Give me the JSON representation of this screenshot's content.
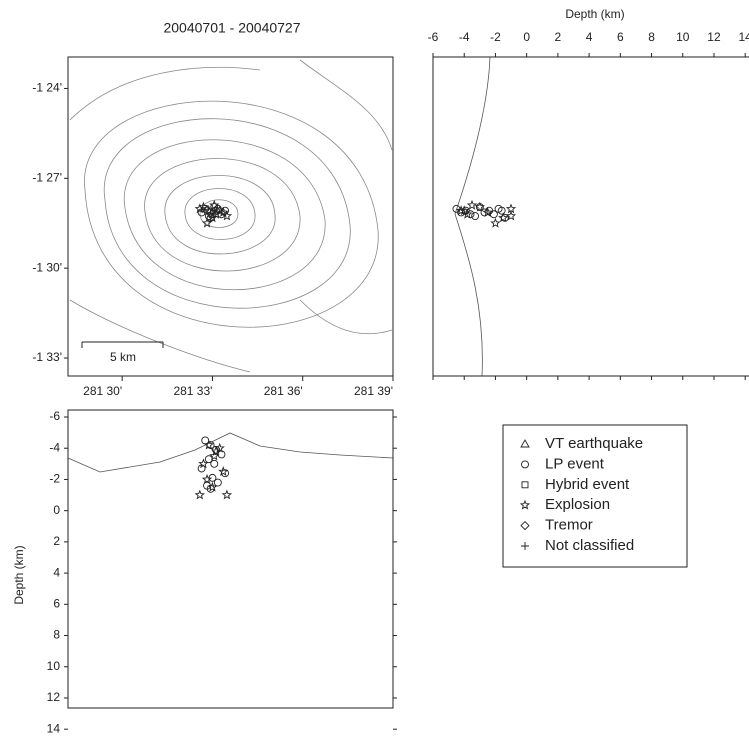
{
  "chart_data": {
    "type": "scatter",
    "title": "20040701   -   20040727",
    "lonlim": [
      281.47,
      281.65
    ],
    "latlim": [
      -1.56,
      -1.3825
    ],
    "depthlim": [
      -6,
      14.5
    ],
    "lon_ticks": [
      {
        "value": 281.5,
        "label": "281 30'"
      },
      {
        "value": 281.55,
        "label": "281 33'"
      },
      {
        "value": 281.6,
        "label": "281 36'"
      },
      {
        "value": 281.65,
        "label": "281 39'"
      }
    ],
    "lat_ticks": [
      {
        "value": -1.4,
        "label": "-1 24'"
      },
      {
        "value": -1.45,
        "label": "-1 27'"
      },
      {
        "value": -1.5,
        "label": "-1 30'"
      },
      {
        "value": -1.55,
        "label": "-1 33'"
      }
    ],
    "depth_ticks": [
      -6,
      -4,
      -2,
      0,
      2,
      4,
      6,
      8,
      10,
      12,
      14
    ],
    "right_xlabel": "Depth (km)",
    "bottom_ylabel": "Depth (km)",
    "scale_bar_label": "5 km",
    "series": [
      {
        "name": "VT earthquake",
        "symbol": "triangle",
        "lon": [],
        "lat": [],
        "depth": []
      },
      {
        "name": "LP event",
        "symbol": "circle",
        "lon": [
          281.546,
          281.549,
          281.552,
          281.555,
          281.548,
          281.551,
          281.544,
          281.557,
          281.55,
          281.553,
          281.547,
          281.549
        ],
        "lat": [
          -1.467,
          -1.469,
          -1.468,
          -1.47,
          -1.471,
          -1.466,
          -1.469,
          -1.468,
          -1.47,
          -1.467,
          -1.468,
          -1.472
        ],
        "depth": [
          -4.5,
          -4.2,
          -3.9,
          -3.6,
          -3.3,
          -3.0,
          -2.7,
          -2.4,
          -2.1,
          -1.8,
          -1.6,
          -1.4
        ]
      },
      {
        "name": "Hybrid event",
        "symbol": "square",
        "lon": [],
        "lat": [],
        "depth": []
      },
      {
        "name": "Explosion",
        "symbol": "star",
        "lon": [
          281.548,
          281.552,
          281.545,
          281.556,
          281.55,
          281.543,
          281.558,
          281.551,
          281.547,
          281.554
        ],
        "lat": [
          -1.468,
          -1.47,
          -1.466,
          -1.469,
          -1.472,
          -1.467,
          -1.471,
          -1.465,
          -1.475,
          -1.468
        ],
        "depth": [
          -4.2,
          -3.8,
          -3.0,
          -2.5,
          -1.5,
          -1.0,
          -1.0,
          -3.5,
          -2.0,
          -4.0
        ]
      },
      {
        "name": "Tremor",
        "symbol": "diamond",
        "lon": [],
        "lat": [],
        "depth": []
      },
      {
        "name": "Not classified",
        "symbol": "plus",
        "lon": [],
        "lat": [],
        "depth": []
      }
    ]
  }
}
